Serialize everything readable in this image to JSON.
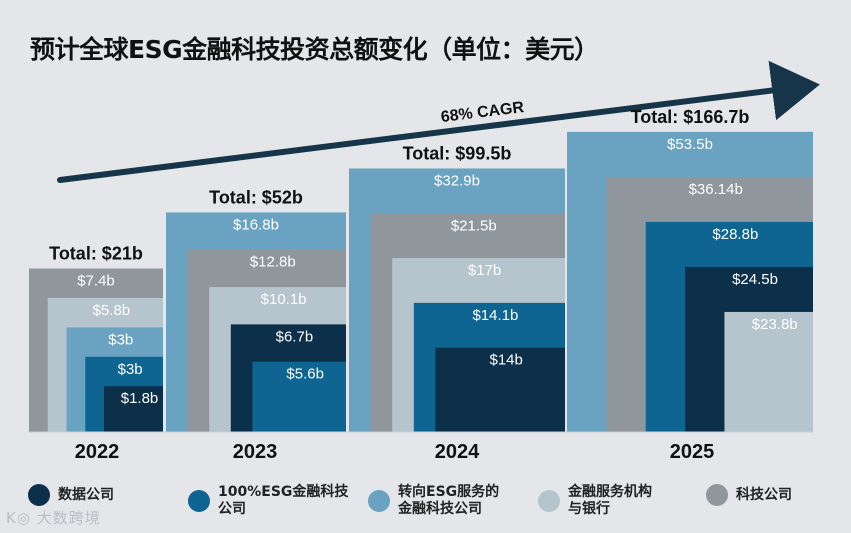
{
  "title": "预计全球ESG金融科技投资总额变化（单位：美元）",
  "cagr_label": "68% CAGR",
  "watermark": "K◎ 大数跨境",
  "colors": {
    "background": "#e4e6ea",
    "arrow": "#163548"
  },
  "chart_data": {
    "type": "bar",
    "stacking": "nested-overlapping-squares",
    "title": "预计全球ESG金融科技投资总额变化（单位：美元）",
    "annotation": "68% CAGR",
    "categories": [
      "2022",
      "2023",
      "2024",
      "2025"
    ],
    "totals": [
      21,
      52,
      99.5,
      166.7
    ],
    "total_labels": [
      "Total: $21b",
      "Total: $52b",
      "Total: $99.5b",
      "Total: $166.7b"
    ],
    "series": [
      {
        "name": "科技公司",
        "color": "#8f979d",
        "values": [
          7.4,
          12.8,
          21.5,
          36.14
        ],
        "labels": [
          "$7.4b",
          "$12.8b",
          "$21.5b",
          "$36.14b"
        ]
      },
      {
        "name": "金融服务机构与银行",
        "color": "#b5c4cd",
        "values": [
          5.8,
          10.1,
          17,
          23.8
        ],
        "labels": [
          "$5.8b",
          "$10.1b",
          "$17b",
          "$23.8b"
        ]
      },
      {
        "name": "转向ESG服务的金融科技公司",
        "color": "#6aa3c2",
        "values": [
          3,
          16.8,
          32.9,
          53.5
        ],
        "labels": [
          "$3b",
          "$16.8b",
          "$32.9b",
          "$53.5b"
        ]
      },
      {
        "name": "100%ESG金融科技公司",
        "color": "#0f6591",
        "values": [
          3,
          5.6,
          14.1,
          28.8
        ],
        "labels": [
          "$3b",
          "$5.6b",
          "$14.1b",
          "$28.8b"
        ]
      },
      {
        "name": "数据公司",
        "color": "#0c2f4a",
        "values": [
          1.8,
          6.7,
          14,
          24.5
        ],
        "labels": [
          "$1.8b",
          "$6.7b",
          "$14b",
          "$24.5b"
        ]
      }
    ]
  },
  "legend": [
    {
      "label": "数据公司",
      "color": "#0c2f4a"
    },
    {
      "label": "100%ESG金融科技\n公司",
      "color": "#0f6591"
    },
    {
      "label": "转向ESG服务的\n金融科技公司",
      "color": "#6aa3c2"
    },
    {
      "label": "金融服务机构\n与银行",
      "color": "#b5c4cd"
    },
    {
      "label": "科技公司",
      "color": "#8f979d"
    }
  ]
}
